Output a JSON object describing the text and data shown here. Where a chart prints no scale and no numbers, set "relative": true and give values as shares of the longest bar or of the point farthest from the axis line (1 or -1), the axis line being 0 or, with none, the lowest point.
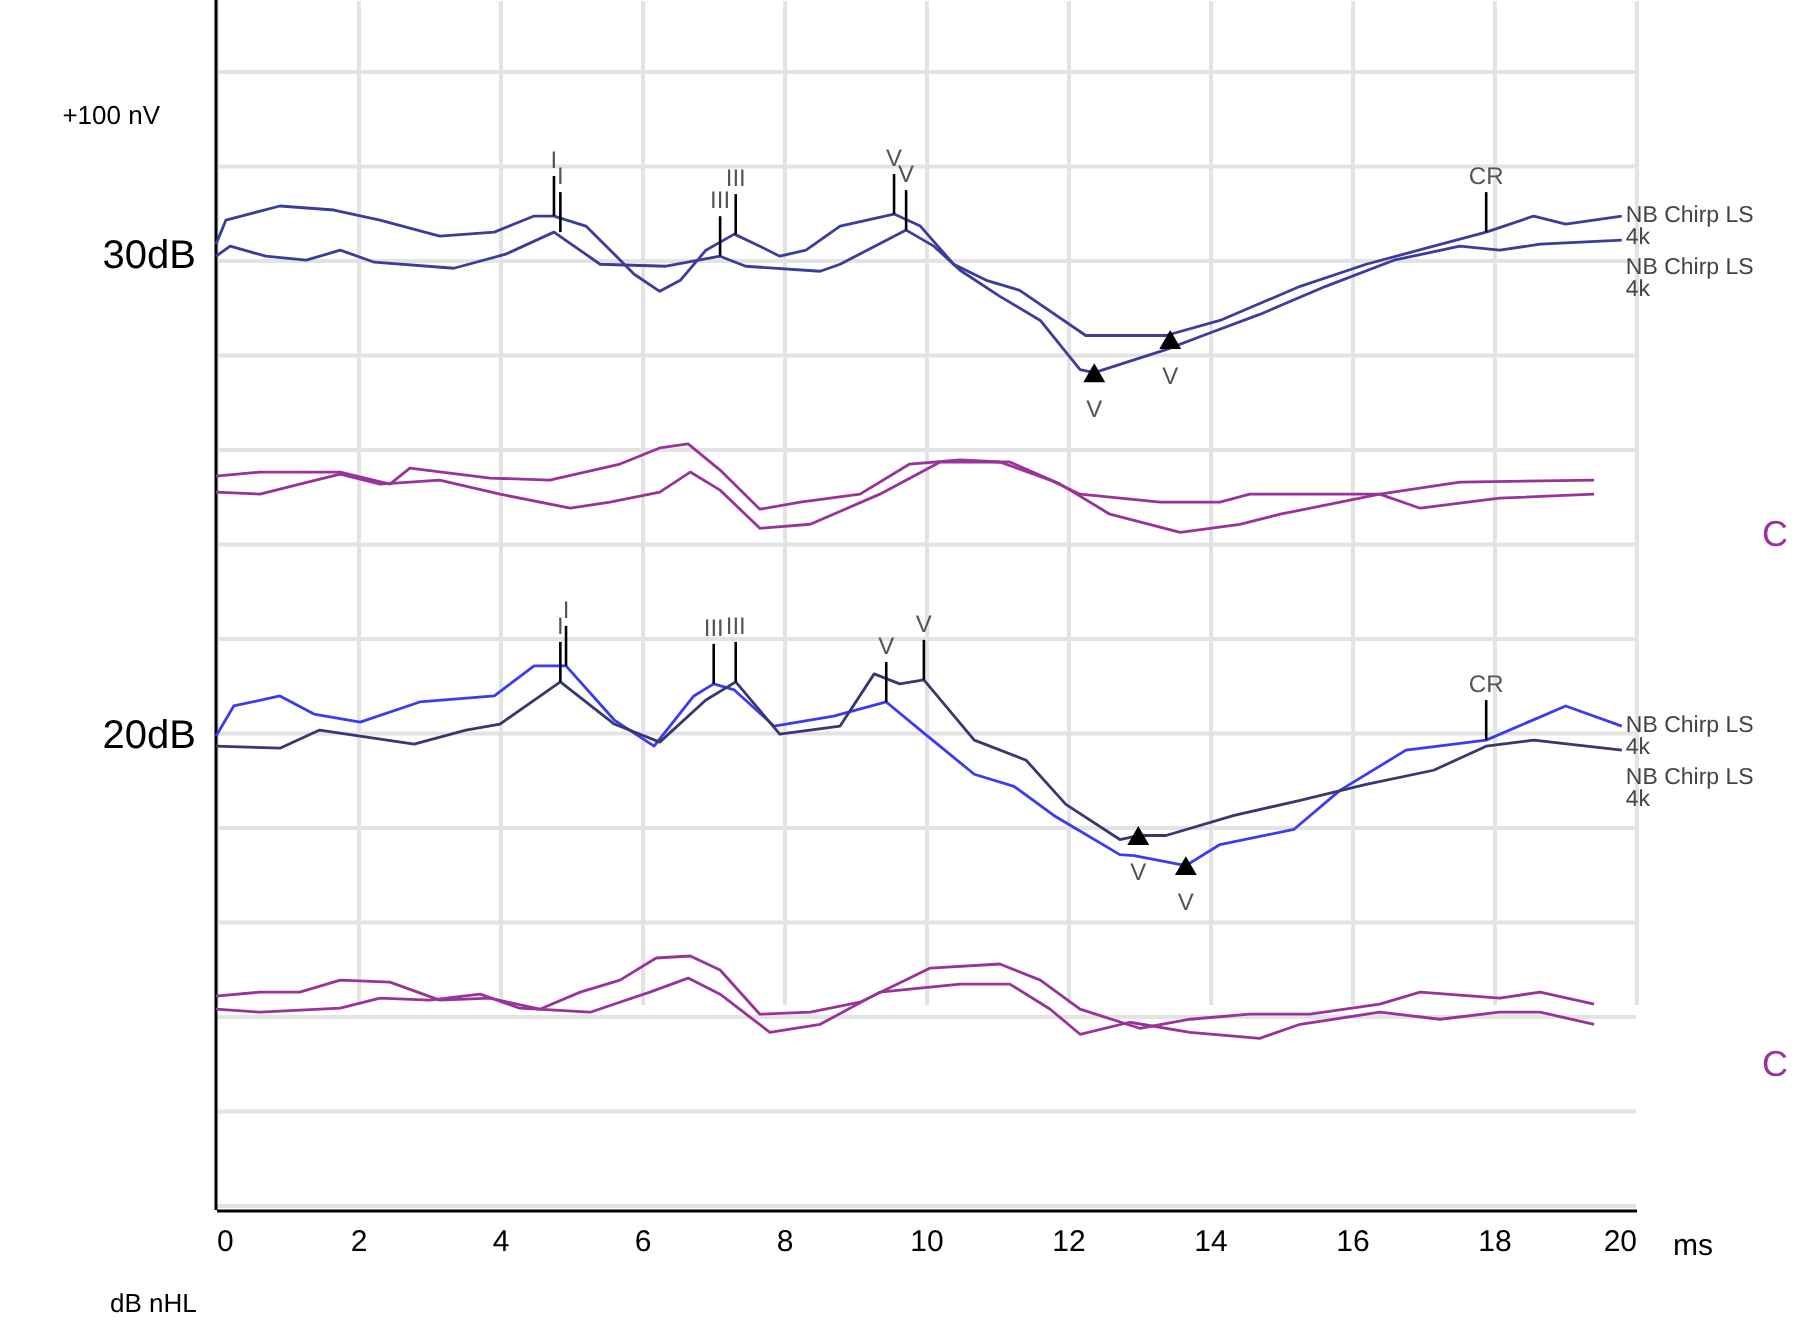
{
  "chart_data": {
    "type": "line",
    "relative": true,
    "xlabel": "ms",
    "xlim": [
      0,
      20
    ],
    "xticks": [
      0,
      2,
      4,
      6,
      8,
      10,
      12,
      14,
      16,
      18,
      20
    ],
    "grid": true,
    "annotations": [
      "+100 nV",
      "30dB",
      "20dB",
      "dB nHL",
      "C",
      "C",
      {
        "text": "I",
        "x": 4.76,
        "y": 0.99
      },
      {
        "text": "I",
        "x": 4.85,
        "y": 0.974
      },
      {
        "text": "III",
        "x": 7.1,
        "y": 0.95
      },
      {
        "text": "III",
        "x": 7.32,
        "y": 0.972
      },
      {
        "text": "V",
        "x": 9.55,
        "y": 0.992
      },
      {
        "text": "V",
        "x": 9.72,
        "y": 0.976
      },
      {
        "text": "CR",
        "x": 17.89,
        "y": 0.974
      },
      {
        "text": "V",
        "x": 12.37,
        "y": 0.834
      },
      {
        "text": "V",
        "x": 13.44,
        "y": 0.867
      },
      {
        "text": "I",
        "x": 4.85,
        "y": 0.526
      },
      {
        "text": "I",
        "x": 4.93,
        "y": 0.542
      },
      {
        "text": "III",
        "x": 7.01,
        "y": 0.524
      },
      {
        "text": "III",
        "x": 7.32,
        "y": 0.526
      },
      {
        "text": "V",
        "x": 9.44,
        "y": 0.506
      },
      {
        "text": "V",
        "x": 9.97,
        "y": 0.528
      },
      {
        "text": "CR",
        "x": 17.89,
        "y": 0.468
      },
      {
        "text": "V",
        "x": 12.99,
        "y": 0.373
      },
      {
        "text": "V",
        "x": 13.66,
        "y": 0.343
      }
    ],
    "series": [
      {
        "name": "NB Chirp LS\n4k",
        "color": "#3c3c9c",
        "x": [
          0,
          0.14,
          0.9,
          1.66,
          2.31,
          3.15,
          3.92,
          4.48,
          4.76,
          5.21,
          5.61,
          5.89,
          6.25,
          6.54,
          6.9,
          7.3,
          7.66,
          7.94,
          8.31,
          8.79,
          9.55,
          9.92,
          10.39,
          10.85,
          11.32,
          12.25,
          13.38,
          14.14,
          15.27,
          16.2,
          17.15,
          17.89,
          18.56,
          19.01,
          19.8
        ],
        "values": [
          0.962,
          0.986,
          1.0,
          0.996,
          0.986,
          0.97,
          0.974,
          0.99,
          0.99,
          0.98,
          0.952,
          0.932,
          0.915,
          0.926,
          0.956,
          0.972,
          0.96,
          0.95,
          0.956,
          0.98,
          0.992,
          0.98,
          0.942,
          0.926,
          0.916,
          0.871,
          0.871,
          0.886,
          0.92,
          0.942,
          0.96,
          0.974,
          0.99,
          0.982,
          0.99
        ]
      },
      {
        "name": "NB Chirp LS\n4k",
        "color": "#3c3c9c",
        "x": [
          0,
          0.2,
          0.7,
          1.27,
          1.75,
          2.23,
          3.35,
          4.08,
          4.76,
          5.41,
          6.34,
          7.1,
          7.46,
          8.51,
          8.79,
          9.72,
          10.11,
          10.48,
          11.04,
          11.61,
          12.17,
          12.37,
          13.38,
          13.94,
          14.7,
          15.63,
          16.59,
          17.52,
          18.08,
          18.65,
          19.8
        ],
        "values": [
          0.95,
          0.96,
          0.95,
          0.946,
          0.956,
          0.944,
          0.938,
          0.952,
          0.974,
          0.942,
          0.94,
          0.95,
          0.94,
          0.935,
          0.942,
          0.976,
          0.96,
          0.936,
          0.91,
          0.886,
          0.837,
          0.834,
          0.857,
          0.872,
          0.892,
          0.92,
          0.946,
          0.96,
          0.956,
          0.962,
          0.966
        ]
      },
      {
        "color": "#993399",
        "x": [
          0,
          0.62,
          1.75,
          2.45,
          2.73,
          3.86,
          4.7,
          5.69,
          6.25,
          6.65,
          7.1,
          7.66,
          8.23,
          9.07,
          9.77,
          10.48,
          11.04,
          11.75,
          12.17,
          13.3,
          14.14,
          14.56,
          16.39,
          17.52,
          19.41
        ],
        "values": [
          0.731,
          0.735,
          0.735,
          0.723,
          0.739,
          0.729,
          0.727,
          0.743,
          0.759,
          0.763,
          0.737,
          0.698,
          0.705,
          0.713,
          0.743,
          0.747,
          0.745,
          0.727,
          0.713,
          0.705,
          0.705,
          0.713,
          0.713,
          0.725,
          0.727
        ]
      },
      {
        "color": "#993399",
        "x": [
          0,
          0.62,
          1.18,
          1.75,
          2.31,
          3.15,
          4.0,
          4.99,
          5.55,
          6.25,
          6.68,
          7.1,
          7.66,
          8.37,
          9.35,
          10.2,
          11.18,
          11.89,
          12.59,
          13.58,
          14.42,
          14.99,
          16.39,
          16.96,
          18.08,
          19.41
        ],
        "values": [
          0.715,
          0.713,
          0.723,
          0.733,
          0.723,
          0.727,
          0.713,
          0.699,
          0.705,
          0.715,
          0.735,
          0.717,
          0.679,
          0.683,
          0.713,
          0.745,
          0.745,
          0.723,
          0.693,
          0.675,
          0.683,
          0.693,
          0.713,
          0.699,
          0.709,
          0.713
        ]
      },
      {
        "name": "NB Chirp LS\n4k",
        "color": "#3b3bf0",
        "x": [
          0,
          0.25,
          0.9,
          1.38,
          2.03,
          2.87,
          3.92,
          4.48,
          4.93,
          5.61,
          6.17,
          6.73,
          7.01,
          7.3,
          7.86,
          8.7,
          9.44,
          9.92,
          10.68,
          11.24,
          11.8,
          12.73,
          12.93,
          13.66,
          14.14,
          15.18,
          15.83,
          16.76,
          17.89,
          19.01,
          19.8
        ],
        "values": [
          0.472,
          0.502,
          0.512,
          0.494,
          0.486,
          0.506,
          0.512,
          0.542,
          0.542,
          0.488,
          0.462,
          0.512,
          0.524,
          0.518,
          0.482,
          0.492,
          0.506,
          0.478,
          0.434,
          0.422,
          0.393,
          0.354,
          0.353,
          0.343,
          0.364,
          0.379,
          0.418,
          0.458,
          0.468,
          0.502,
          0.482
        ]
      },
      {
        "name": "NB Chirp LS\n4k",
        "color": "#38386e",
        "x": [
          0,
          0.9,
          1.46,
          2.03,
          2.79,
          3.52,
          4.0,
          4.85,
          5.61,
          6.25,
          6.9,
          7.32,
          7.94,
          8.79,
          9.27,
          9.63,
          9.97,
          10.68,
          11.41,
          11.97,
          12.73,
          12.99,
          13.38,
          14.34,
          15.27,
          16.2,
          17.15,
          17.89,
          18.56,
          19.8
        ],
        "values": [
          0.462,
          0.46,
          0.478,
          0.472,
          0.464,
          0.478,
          0.484,
          0.526,
          0.484,
          0.466,
          0.508,
          0.526,
          0.474,
          0.482,
          0.534,
          0.524,
          0.528,
          0.468,
          0.448,
          0.404,
          0.369,
          0.373,
          0.373,
          0.393,
          0.408,
          0.424,
          0.438,
          0.462,
          0.468,
          0.458
        ]
      },
      {
        "color": "#993399",
        "x": [
          0,
          0.62,
          1.18,
          1.75,
          2.45,
          3.15,
          3.86,
          4.56,
          5.13,
          5.69,
          6.2,
          6.68,
          7.1,
          7.66,
          8.37,
          9.07,
          10.06,
          11.04,
          11.61,
          12.17,
          13.01,
          13.72,
          14.56,
          15.41,
          16.39,
          16.96,
          18.08,
          18.65,
          19.41
        ],
        "values": [
          0.213,
          0.217,
          0.217,
          0.229,
          0.227,
          0.209,
          0.211,
          0.2,
          0.217,
          0.229,
          0.251,
          0.253,
          0.239,
          0.195,
          0.197,
          0.207,
          0.241,
          0.245,
          0.229,
          0.2,
          0.181,
          0.19,
          0.195,
          0.195,
          0.205,
          0.217,
          0.211,
          0.217,
          0.205
        ]
      },
      {
        "color": "#993399",
        "x": [
          0,
          0.62,
          1.75,
          2.31,
          3.01,
          3.72,
          4.28,
          5.27,
          6.11,
          6.65,
          7.1,
          7.8,
          8.51,
          9.35,
          10.48,
          11.18,
          11.75,
          12.17,
          12.87,
          13.72,
          14.7,
          15.27,
          16.39,
          17.24,
          18.08,
          18.65,
          19.41
        ],
        "values": [
          0.2,
          0.197,
          0.201,
          0.211,
          0.209,
          0.215,
          0.201,
          0.197,
          0.217,
          0.231,
          0.215,
          0.177,
          0.185,
          0.217,
          0.225,
          0.225,
          0.2,
          0.175,
          0.187,
          0.177,
          0.171,
          0.185,
          0.197,
          0.19,
          0.197,
          0.197,
          0.185
        ]
      },
      {
        "type": "scatter",
        "marker": "triangle",
        "color": "#000000",
        "x": [
          12.37,
          13.44,
          12.99,
          13.66
        ],
        "values": [
          0.834,
          0.867,
          0.373,
          0.343
        ]
      }
    ]
  }
}
